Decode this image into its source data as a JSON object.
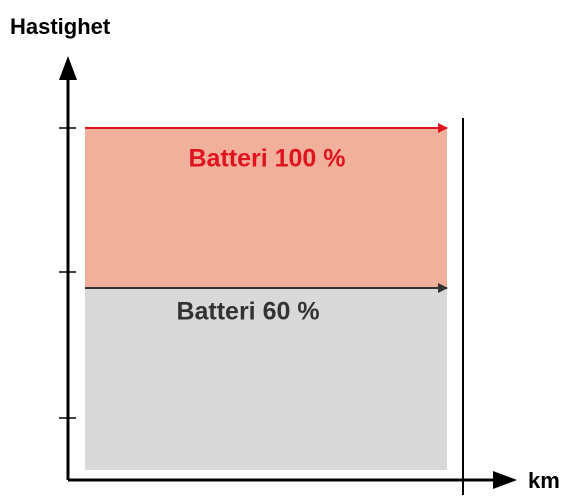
{
  "axes": {
    "y_label": "Hastighet",
    "x_label": "km"
  },
  "regions": [
    {
      "label": "Batteri 100 %"
    },
    {
      "label": "Batteri 60 %"
    }
  ]
}
